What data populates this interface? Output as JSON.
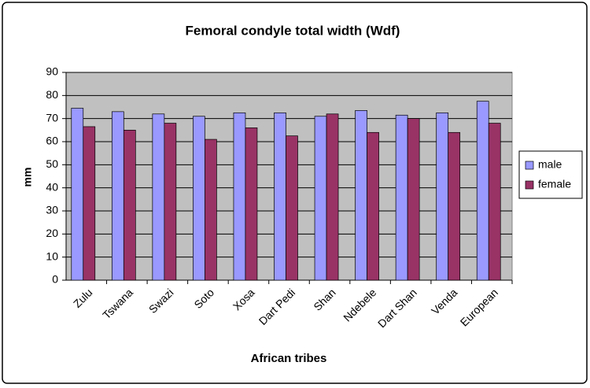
{
  "chart_data": {
    "type": "bar",
    "title": "Femoral condyle total width (Wdf)",
    "x_label": "African tribes",
    "y_label": "mm",
    "categories": [
      "Zulu",
      "Tswana",
      "Swazi",
      "Soto",
      "Xosa",
      "Dart Pedi",
      "Shan",
      "Ndebele",
      "Dart Shan",
      "Venda",
      "European"
    ],
    "series": [
      {
        "name": "male",
        "color": "#9999ff",
        "values": [
          74.5,
          73,
          72,
          71,
          72.5,
          72.5,
          71,
          73.5,
          71.5,
          72.5,
          77.5
        ]
      },
      {
        "name": "female",
        "color": "#993366",
        "values": [
          66.5,
          65,
          68,
          61,
          66,
          62.5,
          72,
          64,
          70,
          64,
          68
        ]
      }
    ],
    "ylim": [
      0,
      90
    ],
    "yticks": [
      0,
      10,
      20,
      30,
      40,
      50,
      60,
      70,
      80,
      90
    ],
    "grid": true,
    "plot_background": "#c0c0c0",
    "legend": "right"
  }
}
